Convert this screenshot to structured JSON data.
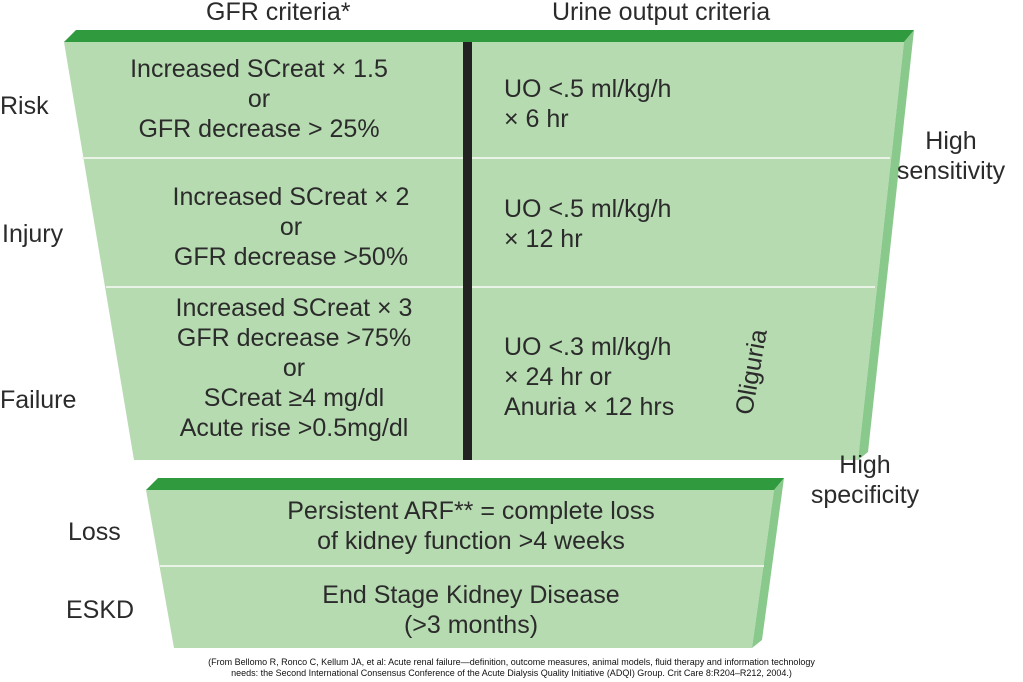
{
  "headers": {
    "gfr": "GFR criteria*",
    "urine": "Urine output criteria"
  },
  "stages": {
    "risk": "Risk",
    "injury": "Injury",
    "failure": "Failure",
    "loss": "Loss",
    "eskd": "ESKD"
  },
  "gfr_criteria": {
    "risk": [
      "Increased SCreat × 1.5",
      "or",
      "GFR decrease > 25%"
    ],
    "injury": [
      "Increased SCreat × 2",
      "or",
      "GFR decrease >50%"
    ],
    "failure": [
      "Increased SCreat × 3",
      "GFR decrease >75%",
      "or",
      "SCreat ≥4 mg/dl",
      "Acute rise >0.5mg/dl"
    ]
  },
  "urine_criteria": {
    "risk": [
      "UO <.5 ml/kg/h",
      "× 6 hr"
    ],
    "injury": [
      "UO <.5 ml/kg/h",
      "× 12 hr"
    ],
    "failure": [
      "UO <.3 ml/kg/h",
      "× 24 hr or",
      "Anuria × 12 hrs"
    ]
  },
  "oliguria": "Oliguria",
  "loss_text": [
    "Persistent ARF** = complete loss",
    "of kidney function >4 weeks"
  ],
  "eskd_text": [
    "End Stage Kidney Disease",
    "(>3 months)"
  ],
  "annotations": {
    "sensitivity": [
      "High",
      "sensitivity"
    ],
    "specificity": [
      "High",
      "specificity"
    ]
  },
  "footer": [
    "(From Bellomo R, Ronco C, Kellum JA, et al: Acute renal failure—definition, outcome measures, animal models, fluid therapy and information technology",
    "needs: the Second International Consensus Conference of the Acute Dialysis Quality Initiative (ADQI) Group. Crit Care 8:R204–R212, 2004.)"
  ],
  "colors": {
    "fill": "#b6dbb0",
    "top_edge": "#2f9a3e",
    "side_edge": "#8ac98c",
    "divider": "#222222",
    "row_line": "#e9f4e6"
  }
}
